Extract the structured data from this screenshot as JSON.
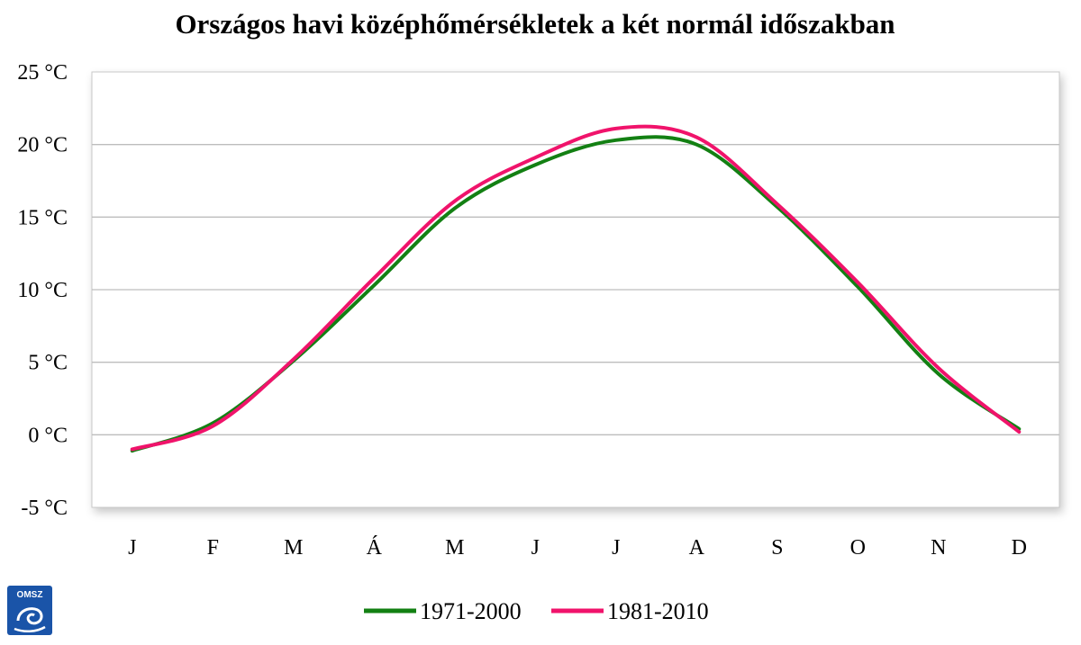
{
  "chart_data": {
    "type": "line",
    "title": "Országos havi középhőmérsékletek a két normál időszakban",
    "xlabel": "",
    "ylabel": "",
    "categories": [
      "J",
      "F",
      "M",
      "Á",
      "M",
      "J",
      "J",
      "A",
      "S",
      "O",
      "N",
      "D"
    ],
    "y_tick_labels": [
      "25 °C",
      "20 °C",
      "15 °C",
      "10 °C",
      "5 °C",
      "0 °C",
      "-5 °C"
    ],
    "y_ticks": [
      25,
      20,
      15,
      10,
      5,
      0,
      -5
    ],
    "ylim": [
      -5,
      25
    ],
    "grid": true,
    "legend_position": "bottom",
    "series": [
      {
        "name": "1971-2000",
        "color": "#138013",
        "values": [
          -1.1,
          0.8,
          5.1,
          10.3,
          15.6,
          18.6,
          20.3,
          20.0,
          15.7,
          10.2,
          4.2,
          0.4
        ]
      },
      {
        "name": "1981-2010",
        "color": "#f0136b",
        "values": [
          -1.0,
          0.6,
          5.2,
          10.8,
          16.1,
          19.1,
          21.1,
          20.5,
          15.9,
          10.5,
          4.6,
          0.2
        ]
      }
    ]
  },
  "logo": {
    "text": "OMSZ",
    "icon": "omsz-logo-icon"
  }
}
